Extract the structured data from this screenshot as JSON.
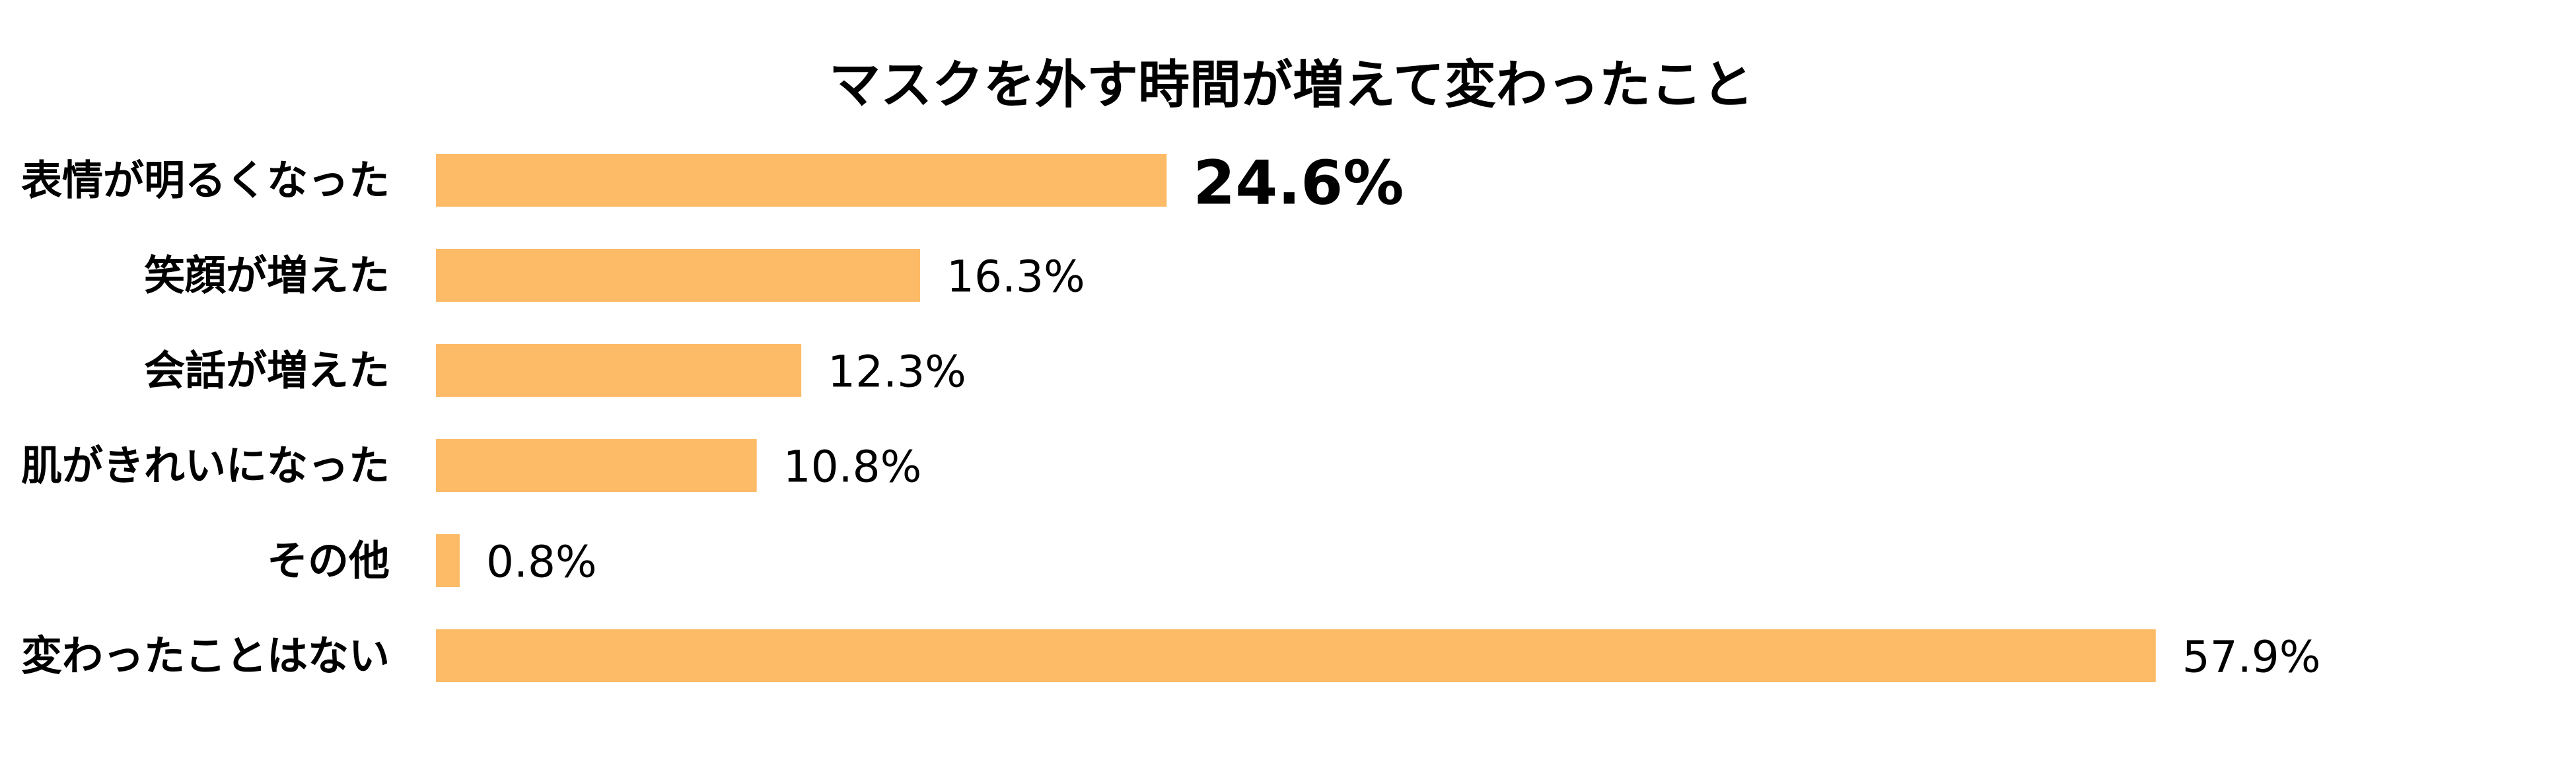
{
  "chart_data": {
    "type": "bar",
    "orientation": "horizontal",
    "title": "マスクを外す時間が増えて変わったこと",
    "xlabel": "",
    "ylabel": "",
    "categories": [
      "表情が明るくなった",
      "笑顔が増えた",
      "会話が増えた",
      "肌がきれいになった",
      "その他",
      "変わったことはない"
    ],
    "values": [
      24.6,
      16.3,
      12.3,
      10.8,
      0.8,
      57.9
    ],
    "value_labels": [
      "24.6%",
      "16.3%",
      "12.3%",
      "10.8%",
      "0.8%",
      "57.9%"
    ],
    "highlight_index": 0,
    "xlim": [
      0,
      60
    ],
    "grid": false,
    "legend": "none",
    "bar_color": "#FDBB67",
    "text_color": "#000000"
  }
}
